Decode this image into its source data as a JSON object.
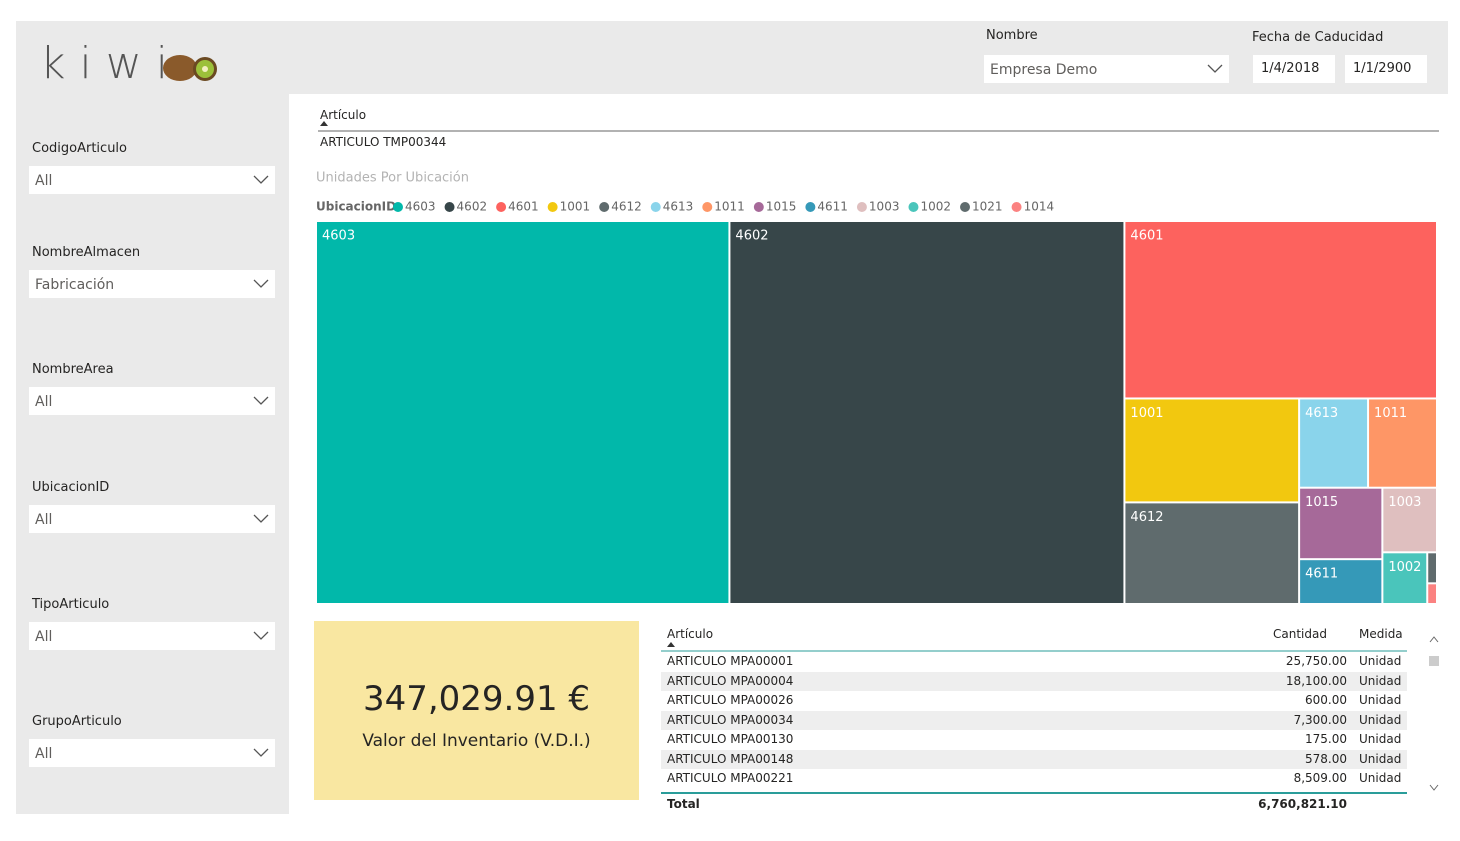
{
  "header": {
    "logo": "kiwi",
    "nombre_label": "Nombre",
    "nombre_value": "Empresa Demo",
    "fecha_label": "Fecha de Caducidad",
    "fecha_desde": "1/4/2018",
    "fecha_hasta": "1/1/2900"
  },
  "filters": [
    {
      "label": "CodigoArticulo",
      "value": "All"
    },
    {
      "label": "NombreAlmacen",
      "value": "Fabricación"
    },
    {
      "label": "NombreArea",
      "value": "All"
    },
    {
      "label": "UbicacionID",
      "value": "All"
    },
    {
      "label": "TipoArticulo",
      "value": "All"
    },
    {
      "label": "GrupoArticulo",
      "value": "All"
    }
  ],
  "articulo": {
    "header": "Artículo",
    "value": "ARTICULO TMP00344"
  },
  "chart_data": {
    "type": "treemap",
    "title": "Unidades Por Ubicación",
    "legend_title": "UbicacionID",
    "categories": [
      "4603",
      "4602",
      "4601",
      "1001",
      "4612",
      "4613",
      "1011",
      "1015",
      "4611",
      "1003",
      "1002",
      "1021",
      "1014"
    ],
    "values": [
      157,
      150,
      55,
      18,
      17.6,
      6.1,
      6.1,
      5.9,
      3.7,
      3.5,
      2.3,
      0.3,
      0.2
    ],
    "colors": [
      "#01B8AA",
      "#374649",
      "#FD625E",
      "#F2C80F",
      "#5F6B6D",
      "#8AD4EB",
      "#FE9666",
      "#A66999",
      "#3599B8",
      "#DFBFBF",
      "#4AC5BB",
      "#5F6B6D",
      "#FB8281"
    ]
  },
  "kpi": {
    "value": "347,029.91 €",
    "label": "Valor del Inventario (V.D.I.)"
  },
  "table": {
    "columns": [
      "Artículo",
      "Cantidad",
      "Medida"
    ],
    "rows": [
      [
        "ARTICULO MPA00001",
        "25,750.00",
        "Unidad"
      ],
      [
        "ARTICULO MPA00004",
        "18,100.00",
        "Unidad"
      ],
      [
        "ARTICULO MPA00026",
        "600.00",
        "Unidad"
      ],
      [
        "ARTICULO MPA00034",
        "7,300.00",
        "Unidad"
      ],
      [
        "ARTICULO MPA00130",
        "175.00",
        "Unidad"
      ],
      [
        "ARTICULO MPA00148",
        "578.00",
        "Unidad"
      ],
      [
        "ARTICULO MPA00221",
        "8,509.00",
        "Unidad"
      ]
    ],
    "total": [
      "Total",
      "6,760,821.10"
    ]
  }
}
